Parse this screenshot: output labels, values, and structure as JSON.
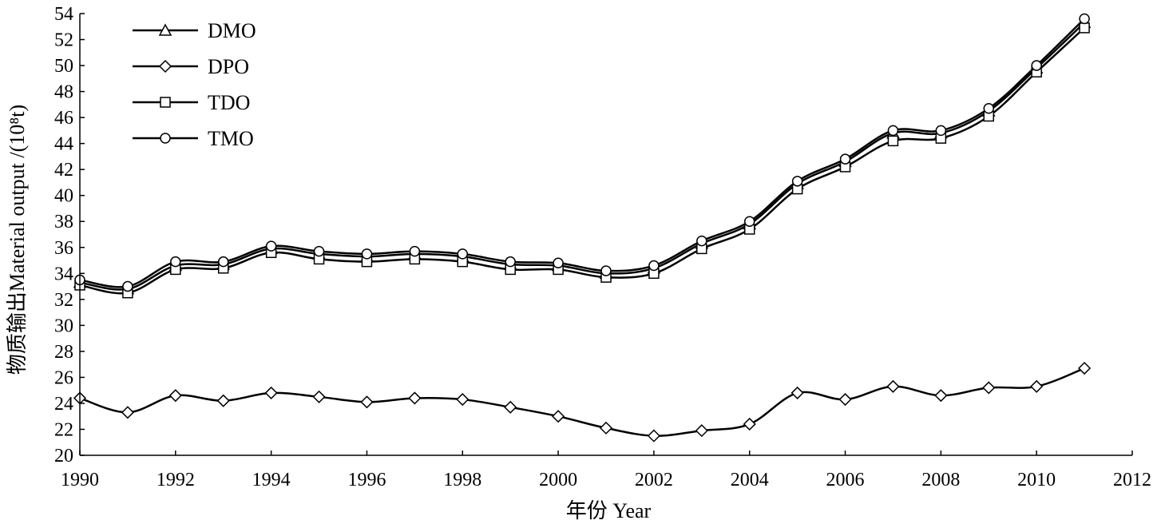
{
  "chart_data": {
    "type": "line",
    "title": "",
    "xlabel": "年份 Year",
    "ylabel": "物质输出Material output /(10⁸t)",
    "xlim": [
      1990,
      2012
    ],
    "ylim": [
      20,
      54
    ],
    "xticks": [
      "1990",
      "1992",
      "1994",
      "1996",
      "1998",
      "2000",
      "2002",
      "2004",
      "2006",
      "2008",
      "2010",
      "2012"
    ],
    "yticks": [
      "20",
      "22",
      "24",
      "26",
      "28",
      "30",
      "32",
      "34",
      "36",
      "38",
      "40",
      "42",
      "44",
      "46",
      "48",
      "50",
      "52",
      "54"
    ],
    "grid": false,
    "legend_position": "top-left",
    "x": [
      1990,
      1991,
      1992,
      1993,
      1994,
      1995,
      1996,
      1997,
      1998,
      1999,
      2000,
      2001,
      2002,
      2003,
      2004,
      2005,
      2006,
      2007,
      2008,
      2009,
      2010,
      2011
    ],
    "series": [
      {
        "name": "DMO",
        "marker": "triangle",
        "values": [
          33.3,
          32.8,
          34.6,
          34.7,
          35.9,
          35.5,
          35.3,
          35.5,
          35.3,
          34.7,
          34.6,
          34.0,
          34.4,
          36.3,
          37.8,
          40.9,
          42.6,
          44.8,
          44.8,
          46.5,
          49.8,
          53.3
        ]
      },
      {
        "name": "DPO",
        "marker": "diamond",
        "values": [
          24.4,
          23.3,
          24.6,
          24.2,
          24.8,
          24.5,
          24.1,
          24.4,
          24.3,
          23.7,
          23.0,
          22.1,
          21.5,
          21.9,
          22.4,
          24.8,
          24.3,
          25.3,
          24.6,
          25.2,
          25.3,
          26.7
        ]
      },
      {
        "name": "TDO",
        "marker": "square",
        "values": [
          33.1,
          32.5,
          34.3,
          34.4,
          35.6,
          35.1,
          34.9,
          35.1,
          34.9,
          34.3,
          34.3,
          33.7,
          34.0,
          35.9,
          37.4,
          40.5,
          42.2,
          44.2,
          44.4,
          46.1,
          49.5,
          52.9
        ]
      },
      {
        "name": "TMO",
        "marker": "circle",
        "values": [
          33.5,
          33.0,
          34.9,
          34.9,
          36.1,
          35.7,
          35.5,
          35.7,
          35.5,
          34.9,
          34.8,
          34.2,
          34.6,
          36.5,
          38.0,
          41.1,
          42.8,
          45.0,
          45.0,
          46.7,
          50.0,
          53.6
        ]
      }
    ]
  }
}
